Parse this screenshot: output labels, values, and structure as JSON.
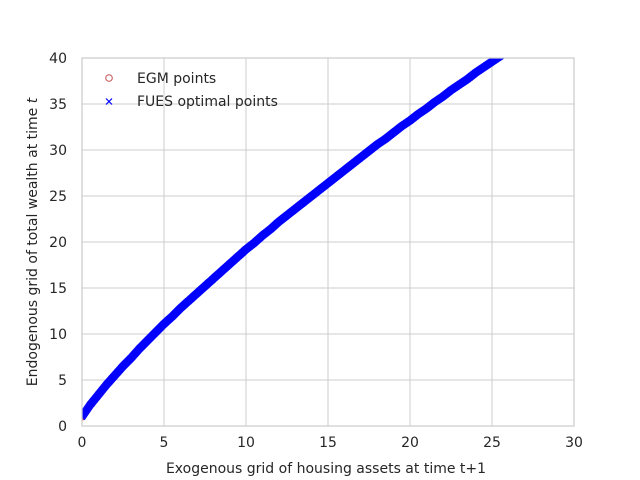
{
  "chart_data": {
    "type": "scatter",
    "title": "",
    "xlabel": "Exogenous grid of housing assets at time t+1",
    "ylabel_prefix": "Endogenous grid of total wealth at time ",
    "ylabel_var": "t",
    "xlim": [
      0,
      30
    ],
    "ylim": [
      0,
      40
    ],
    "x_ticks": [
      "0",
      "5",
      "10",
      "15",
      "20",
      "25",
      "30"
    ],
    "y_ticks": [
      "0",
      "5",
      "10",
      "15",
      "20",
      "25",
      "30",
      "35",
      "40"
    ],
    "grid": true,
    "legend_position": "top-left",
    "series": [
      {
        "name": "EGM points",
        "marker": "circle-open",
        "color": "#c44e52",
        "x": [
          0,
          0.5,
          1,
          1.5,
          2,
          2.5,
          3,
          3.5,
          4,
          4.5,
          5,
          5.5,
          6,
          6.5,
          7,
          7.5,
          8,
          8.5,
          9,
          9.5,
          10,
          10.5,
          11,
          11.5,
          12,
          12.5,
          13,
          13.5,
          14,
          14.5,
          15,
          15.5,
          16,
          16.5,
          17,
          17.5,
          18,
          18.5,
          19,
          19.5,
          20,
          20.5,
          21,
          21.5,
          22,
          22.5,
          23,
          23.5,
          24,
          24.5,
          25,
          25.5,
          25.8
        ],
        "y": [
          1.0,
          2.3,
          3.4,
          4.5,
          5.5,
          6.5,
          7.4,
          8.4,
          9.3,
          10.2,
          11.1,
          11.9,
          12.8,
          13.6,
          14.4,
          15.2,
          16.0,
          16.8,
          17.6,
          18.4,
          19.2,
          19.9,
          20.7,
          21.4,
          22.2,
          22.9,
          23.6,
          24.3,
          25.0,
          25.7,
          26.4,
          27.1,
          27.8,
          28.5,
          29.2,
          29.9,
          30.6,
          31.2,
          31.9,
          32.6,
          33.2,
          33.9,
          34.5,
          35.2,
          35.8,
          36.5,
          37.1,
          37.7,
          38.4,
          39.0,
          39.6,
          40.2,
          40.6
        ]
      },
      {
        "name": "FUES optimal points",
        "marker": "x",
        "color": "#0000ff",
        "x": [
          0,
          0.5,
          1,
          1.5,
          2,
          2.5,
          3,
          3.5,
          4,
          4.5,
          5,
          5.5,
          6,
          6.5,
          7,
          7.5,
          8,
          8.5,
          9,
          9.5,
          10,
          10.5,
          11,
          11.5,
          12,
          12.5,
          13,
          13.5,
          14,
          14.5,
          15,
          15.5,
          16,
          16.5,
          17,
          17.5,
          18,
          18.5,
          19,
          19.5,
          20,
          20.5,
          21,
          21.5,
          22,
          22.5,
          23,
          23.5,
          24,
          24.5,
          25,
          25.5,
          25.8
        ],
        "y": [
          1.0,
          2.3,
          3.4,
          4.5,
          5.5,
          6.5,
          7.4,
          8.4,
          9.3,
          10.2,
          11.1,
          11.9,
          12.8,
          13.6,
          14.4,
          15.2,
          16.0,
          16.8,
          17.6,
          18.4,
          19.2,
          19.9,
          20.7,
          21.4,
          22.2,
          22.9,
          23.6,
          24.3,
          25.0,
          25.7,
          26.4,
          27.1,
          27.8,
          28.5,
          29.2,
          29.9,
          30.6,
          31.2,
          31.9,
          32.6,
          33.2,
          33.9,
          34.5,
          35.2,
          35.8,
          36.5,
          37.1,
          37.7,
          38.4,
          39.0,
          39.6,
          40.2,
          40.6
        ]
      }
    ]
  }
}
